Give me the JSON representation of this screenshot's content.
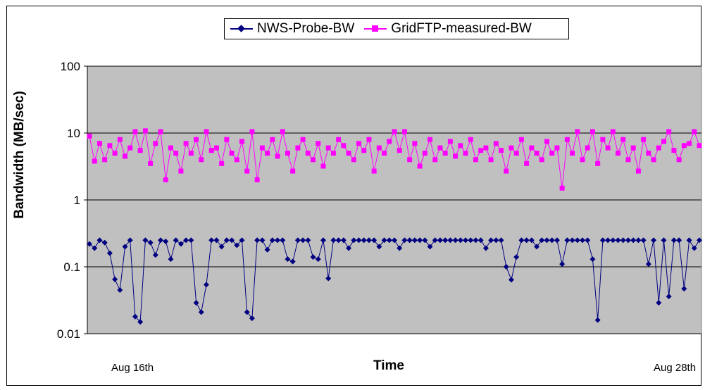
{
  "chart_data": {
    "type": "line",
    "title": "",
    "xlabel": "Time",
    "ylabel": "Bandwidth (MB/sec)",
    "yscale": "log",
    "ylim": [
      0.01,
      100
    ],
    "y_ticks": [
      "0.01",
      "0.1",
      "1",
      "10",
      "100"
    ],
    "x_tick_labels": [
      "Aug 16th",
      "Aug 28th"
    ],
    "grid": "horizontal major gridlines",
    "plot_background": "#c0c0c0",
    "legend_position": "top",
    "series": [
      {
        "name": "NWS-Probe-BW",
        "color": "#000080",
        "marker": "diamond",
        "x": [
          0.0,
          0.1,
          0.2,
          0.3,
          0.4,
          0.5,
          0.6,
          0.7,
          0.8,
          0.9,
          1.0,
          1.1,
          1.2,
          1.3,
          1.4,
          1.5,
          1.6,
          1.7,
          1.8,
          1.9,
          2.0,
          2.1,
          2.2,
          2.3,
          2.4,
          2.5,
          2.6,
          2.7,
          2.8,
          2.9,
          3.0,
          3.1,
          3.2,
          3.3,
          3.4,
          3.5,
          3.6,
          3.7,
          3.8,
          3.9,
          4.0,
          4.1,
          4.2,
          4.3,
          4.4,
          4.5,
          4.6,
          4.7,
          4.8,
          4.9,
          5.0,
          5.1,
          5.2,
          5.3,
          5.4,
          5.5,
          5.6,
          5.7,
          5.8,
          5.9,
          6.0,
          6.1,
          6.2,
          6.3,
          6.4,
          6.5,
          6.6,
          6.7,
          6.8,
          6.9,
          7.0,
          7.1,
          7.2,
          7.3,
          7.4,
          7.5,
          7.6,
          7.7,
          7.8,
          7.9,
          8.0,
          8.1,
          8.2,
          8.3,
          8.4,
          8.5,
          8.6,
          8.7,
          8.8,
          8.9,
          9.0,
          9.1,
          9.2,
          9.3,
          9.4,
          9.5,
          9.6,
          9.7,
          9.8,
          9.9,
          10.0,
          10.1,
          10.2,
          10.3,
          10.4,
          10.5,
          10.6,
          10.7,
          10.8,
          10.9,
          11.0,
          11.1,
          11.2,
          11.3,
          11.4,
          11.5,
          11.6,
          11.7,
          11.8,
          11.9,
          12.0
        ],
        "y": [
          0.22,
          0.19,
          0.25,
          0.23,
          0.16,
          0.065,
          0.045,
          0.2,
          0.25,
          0.018,
          0.015,
          0.25,
          0.23,
          0.15,
          0.25,
          0.24,
          0.13,
          0.25,
          0.22,
          0.25,
          0.25,
          0.029,
          0.021,
          0.054,
          0.25,
          0.25,
          0.2,
          0.25,
          0.25,
          0.21,
          0.25,
          0.021,
          0.017,
          0.25,
          0.25,
          0.18,
          0.25,
          0.25,
          0.25,
          0.13,
          0.12,
          0.25,
          0.25,
          0.25,
          0.14,
          0.13,
          0.25,
          0.067,
          0.25,
          0.25,
          0.25,
          0.19,
          0.25,
          0.25,
          0.25,
          0.25,
          0.25,
          0.2,
          0.25,
          0.25,
          0.25,
          0.19,
          0.25,
          0.25,
          0.25,
          0.25,
          0.25,
          0.2,
          0.25,
          0.25,
          0.25,
          0.25,
          0.25,
          0.25,
          0.25,
          0.25,
          0.25,
          0.25,
          0.19,
          0.25,
          0.25,
          0.25,
          0.1,
          0.064,
          0.14,
          0.25,
          0.25,
          0.25,
          0.2,
          0.25,
          0.25,
          0.25,
          0.25,
          0.11,
          0.25,
          0.25,
          0.25,
          0.25,
          0.25,
          0.13,
          0.016,
          0.25,
          0.25,
          0.25,
          0.25,
          0.25,
          0.25,
          0.25,
          0.25,
          0.25,
          0.11,
          0.25,
          0.029,
          0.25,
          0.036,
          0.25,
          0.25,
          0.047,
          0.25,
          0.19,
          0.25
        ]
      },
      {
        "name": "GridFTP-measured-BW",
        "color": "#ff00ff",
        "marker": "square",
        "x": [
          0.0,
          0.1,
          0.2,
          0.3,
          0.4,
          0.5,
          0.6,
          0.7,
          0.8,
          0.9,
          1.0,
          1.1,
          1.2,
          1.3,
          1.4,
          1.5,
          1.6,
          1.7,
          1.8,
          1.9,
          2.0,
          2.1,
          2.2,
          2.3,
          2.4,
          2.5,
          2.6,
          2.7,
          2.8,
          2.9,
          3.0,
          3.1,
          3.2,
          3.3,
          3.4,
          3.5,
          3.6,
          3.7,
          3.8,
          3.9,
          4.0,
          4.1,
          4.2,
          4.3,
          4.4,
          4.5,
          4.6,
          4.7,
          4.8,
          4.9,
          5.0,
          5.1,
          5.2,
          5.3,
          5.4,
          5.5,
          5.6,
          5.7,
          5.8,
          5.9,
          6.0,
          6.1,
          6.2,
          6.3,
          6.4,
          6.5,
          6.6,
          6.7,
          6.8,
          6.9,
          7.0,
          7.1,
          7.2,
          7.3,
          7.4,
          7.5,
          7.6,
          7.7,
          7.8,
          7.9,
          8.0,
          8.1,
          8.2,
          8.3,
          8.4,
          8.5,
          8.6,
          8.7,
          8.8,
          8.9,
          9.0,
          9.1,
          9.2,
          9.3,
          9.4,
          9.5,
          9.6,
          9.7,
          9.8,
          9.9,
          10.0,
          10.1,
          10.2,
          10.3,
          10.4,
          10.5,
          10.6,
          10.7,
          10.8,
          10.9,
          11.0,
          11.1,
          11.2,
          11.3,
          11.4,
          11.5,
          11.6,
          11.7,
          11.8,
          11.9,
          12.0
        ],
        "y": [
          9.0,
          3.8,
          7.0,
          4.0,
          6.5,
          5.0,
          8.0,
          4.5,
          6.0,
          10.5,
          5.5,
          10.8,
          3.5,
          7.0,
          10.5,
          2.0,
          6.0,
          5.0,
          2.7,
          7.0,
          5.0,
          8.0,
          4.0,
          10.5,
          5.5,
          6.0,
          3.5,
          8.0,
          5.0,
          4.0,
          7.5,
          2.7,
          10.5,
          2.0,
          6.0,
          5.0,
          8.0,
          4.5,
          10.5,
          5.0,
          2.7,
          6.0,
          8.0,
          5.0,
          4.0,
          7.0,
          3.2,
          6.0,
          5.0,
          8.0,
          6.5,
          5.0,
          4.0,
          7.0,
          5.5,
          8.0,
          2.7,
          6.0,
          5.0,
          7.5,
          10.5,
          5.5,
          10.5,
          4.0,
          7.0,
          3.2,
          5.0,
          8.0,
          4.0,
          6.0,
          5.0,
          7.5,
          4.5,
          6.5,
          5.0,
          8.0,
          4.0,
          5.5,
          6.0,
          4.0,
          7.0,
          5.5,
          2.7,
          6.0,
          5.0,
          8.0,
          3.5,
          6.0,
          5.0,
          4.0,
          7.5,
          5.0,
          6.0,
          1.5,
          8.0,
          5.0,
          10.5,
          4.0,
          6.0,
          10.5,
          3.5,
          8.0,
          6.0,
          10.5,
          5.0,
          8.0,
          4.0,
          6.0,
          2.7,
          8.0,
          5.0,
          4.0,
          6.0,
          7.5,
          10.5,
          5.5,
          4.0,
          6.5,
          7.0,
          10.5,
          6.5
        ]
      }
    ]
  }
}
